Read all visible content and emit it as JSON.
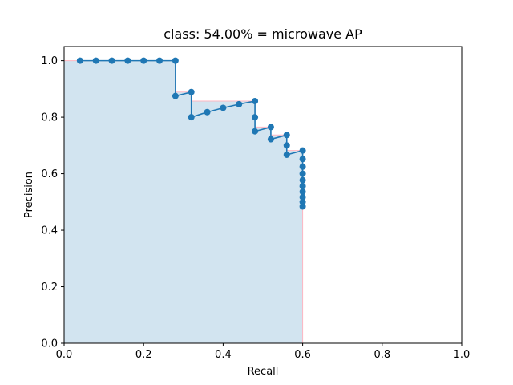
{
  "chart_data": {
    "type": "line",
    "title": "class: 54.00% = microwave AP",
    "xlabel": "Recall",
    "ylabel": "Precision",
    "xlim": [
      0.0,
      1.0
    ],
    "ylim": [
      0.0,
      1.05
    ],
    "xticks": [
      "0.0",
      "0.2",
      "0.4",
      "0.6",
      "0.8",
      "1.0"
    ],
    "yticks": [
      "0.0",
      "0.2",
      "0.4",
      "0.6",
      "0.8",
      "1.0"
    ],
    "grid": false,
    "colors": {
      "line": "#1f77b4",
      "fill": "#1f77b4",
      "envelope": "#ffb6c1"
    },
    "series": [
      {
        "x": [
          0.04,
          0.08,
          0.12,
          0.16,
          0.2,
          0.24,
          0.28,
          0.28,
          0.32,
          0.32,
          0.36,
          0.4,
          0.44,
          0.48,
          0.48,
          0.48,
          0.52,
          0.52,
          0.56,
          0.56,
          0.56,
          0.6,
          0.6,
          0.6,
          0.6,
          0.6,
          0.6,
          0.6,
          0.6,
          0.6,
          0.6
        ],
        "y": [
          1.0,
          1.0,
          1.0,
          1.0,
          1.0,
          1.0,
          1.0,
          0.875,
          0.889,
          0.8,
          0.818,
          0.833,
          0.846,
          0.857,
          0.8,
          0.75,
          0.765,
          0.722,
          0.737,
          0.7,
          0.667,
          0.682,
          0.652,
          0.625,
          0.6,
          0.577,
          0.556,
          0.536,
          0.517,
          0.5,
          0.484
        ]
      }
    ],
    "envelope": {
      "x": [
        0.0,
        0.28,
        0.28,
        0.32,
        0.32,
        0.48,
        0.48,
        0.52,
        0.52,
        0.56,
        0.56,
        0.6,
        0.6
      ],
      "y": [
        1.0,
        1.0,
        0.889,
        0.889,
        0.857,
        0.857,
        0.765,
        0.765,
        0.737,
        0.737,
        0.682,
        0.682,
        0.0
      ]
    }
  }
}
